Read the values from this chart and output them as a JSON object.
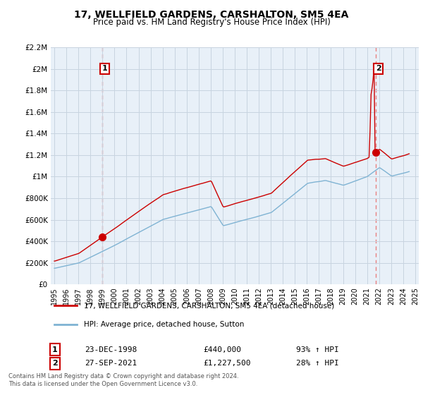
{
  "title": "17, WELLFIELD GARDENS, CARSHALTON, SM5 4EA",
  "subtitle": "Price paid vs. HM Land Registry's House Price Index (HPI)",
  "legend_line1": "17, WELLFIELD GARDENS, CARSHALTON, SM5 4EA (detached house)",
  "legend_line2": "HPI: Average price, detached house, Sutton",
  "footnote": "Contains HM Land Registry data © Crown copyright and database right 2024.\nThis data is licensed under the Open Government Licence v3.0.",
  "sale1_date": "23-DEC-1998",
  "sale1_price": "£440,000",
  "sale1_hpi": "93% ↑ HPI",
  "sale2_date": "27-SEP-2021",
  "sale2_price": "£1,227,500",
  "sale2_hpi": "28% ↑ HPI",
  "sale1_year": 1998.97,
  "sale1_value": 440000,
  "sale2_year": 2021.74,
  "sale2_value": 1227500,
  "red_color": "#cc0000",
  "blue_color": "#7fb3d3",
  "dashed_color": "#e88080",
  "bg_color": "#e8f0f8",
  "grid_color": "#c8d4e0",
  "ylim": [
    0,
    2200000
  ],
  "yticks": [
    0,
    200000,
    400000,
    600000,
    800000,
    1000000,
    1200000,
    1400000,
    1600000,
    1800000,
    2000000,
    2200000
  ],
  "ytick_labels": [
    "£0",
    "£200K",
    "£400K",
    "£600K",
    "£800K",
    "£1M",
    "£1.2M",
    "£1.4M",
    "£1.6M",
    "£1.8M",
    "£2M",
    "£2.2M"
  ],
  "xlim_start": 1994.7,
  "xlim_end": 2025.3,
  "xtick_years": [
    1995,
    1996,
    1997,
    1998,
    1999,
    2000,
    2001,
    2002,
    2003,
    2004,
    2005,
    2006,
    2007,
    2008,
    2009,
    2010,
    2011,
    2012,
    2013,
    2014,
    2015,
    2016,
    2017,
    2018,
    2019,
    2020,
    2021,
    2022,
    2023,
    2024,
    2025
  ]
}
